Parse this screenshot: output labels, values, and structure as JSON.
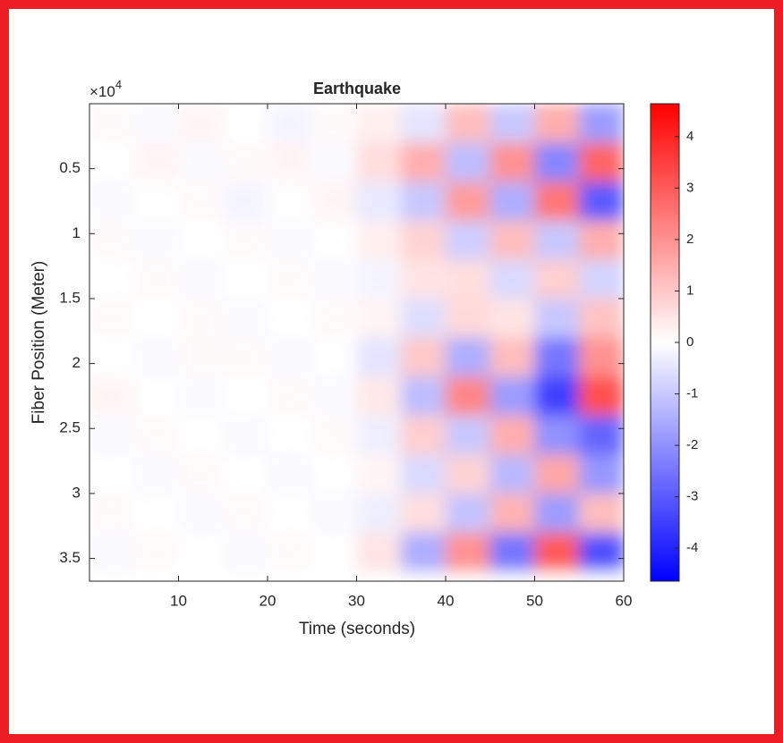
{
  "chart_data": {
    "type": "heatmap",
    "title": "Earthquake",
    "x_label": "Time (seconds)",
    "y_label": "Fiber Position (Meter)",
    "y_multiplier": {
      "base": "×10",
      "exponent": "4"
    },
    "xlim": [
      0,
      60
    ],
    "xticks": [
      10,
      20,
      30,
      40,
      50,
      60
    ],
    "ylim": [
      0,
      36750
    ],
    "y_reversed": true,
    "yticks": [
      {
        "value": 5000,
        "label": "0.5"
      },
      {
        "value": 10000,
        "label": "1"
      },
      {
        "value": 15000,
        "label": "1.5"
      },
      {
        "value": 20000,
        "label": "2"
      },
      {
        "value": 25000,
        "label": "2.5"
      },
      {
        "value": 30000,
        "label": "3"
      },
      {
        "value": 35000,
        "label": "3.5"
      }
    ],
    "x": [
      2.5,
      7.5,
      12.5,
      17.5,
      22.5,
      27.5,
      32.5,
      37.5,
      42.5,
      47.5,
      52.5,
      57.5
    ],
    "y": [
      1500,
      4500,
      7500,
      10500,
      13500,
      16500,
      19500,
      22500,
      25500,
      28500,
      31500,
      34500
    ],
    "z": [
      [
        0.1,
        -0.1,
        0.2,
        0,
        -0.2,
        0.1,
        0.3,
        -0.5,
        1.2,
        -1.0,
        1.5,
        -1.8
      ],
      [
        0,
        0.2,
        -0.1,
        0.1,
        0.2,
        -0.1,
        0.6,
        1.5,
        -1.2,
        2.0,
        -2.2,
        2.8
      ],
      [
        -0.1,
        0,
        0.1,
        -0.2,
        0,
        0.2,
        -0.4,
        -1.0,
        1.8,
        -1.5,
        2.5,
        -3.0
      ],
      [
        0.1,
        -0.1,
        0,
        0.1,
        -0.1,
        0,
        0.3,
        0.8,
        -0.9,
        1.2,
        -1.0,
        1.5
      ],
      [
        0,
        0.1,
        -0.1,
        0,
        0.1,
        -0.1,
        -0.2,
        0.5,
        0.6,
        -0.7,
        0.9,
        -0.8
      ],
      [
        0.1,
        0,
        0.1,
        -0.1,
        0,
        0.1,
        0.2,
        -0.6,
        0.7,
        0.5,
        -1.0,
        1.1
      ],
      [
        0,
        -0.1,
        0.1,
        0.1,
        -0.1,
        0,
        -0.5,
        1.0,
        -1.5,
        1.2,
        -2.5,
        2.0
      ],
      [
        0.2,
        0,
        -0.1,
        0,
        0.1,
        -0.1,
        0.4,
        -1.2,
        2.2,
        -1.8,
        -3.5,
        3.2
      ],
      [
        -0.1,
        0.1,
        0,
        -0.1,
        0,
        0.1,
        -0.3,
        0.9,
        -1.0,
        1.5,
        -2.0,
        -2.8
      ],
      [
        0,
        -0.1,
        0.1,
        0,
        -0.1,
        0,
        0.2,
        -0.7,
        0.8,
        -1.3,
        1.6,
        -1.9
      ],
      [
        0.1,
        0,
        -0.1,
        0.1,
        0,
        -0.1,
        -0.3,
        0.6,
        -1.1,
        1.4,
        -1.8,
        1.2
      ],
      [
        -0.1,
        0.1,
        0,
        -0.1,
        0.1,
        0,
        0.5,
        -1.5,
        2.0,
        -2.5,
        3.0,
        -3.2
      ]
    ],
    "colormap": [
      "#0000ff",
      "#ffffff",
      "#ff0000"
    ],
    "clim": [
      -4.64,
      4.64
    ],
    "cticks": [
      -4,
      -3,
      -2,
      -1,
      0,
      1,
      2,
      3,
      4
    ]
  }
}
